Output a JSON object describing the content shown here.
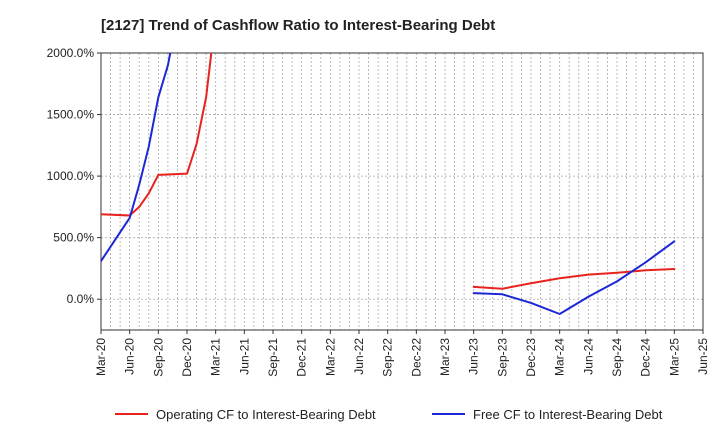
{
  "chart_data": {
    "type": "line",
    "title": "[2127]  Trend of Cashflow Ratio to Interest-Bearing Debt",
    "xlabel": "",
    "ylabel": "",
    "ylim": [
      -250,
      2000
    ],
    "yticks": [
      0,
      500,
      1000,
      1500,
      2000
    ],
    "ytick_labels": [
      "0.0%",
      "500.0%",
      "1000.0%",
      "1500.0%",
      "2000.0%"
    ],
    "x": [
      "Mar-20",
      "Apr-20",
      "May-20",
      "Jun-20",
      "Jul-20",
      "Aug-20",
      "Sep-20",
      "Oct-20",
      "Nov-20",
      "Dec-20",
      "Jan-21",
      "Feb-21",
      "Mar-21",
      "Apr-21",
      "May-21",
      "Jun-21",
      "Jul-21",
      "Aug-21",
      "Sep-21",
      "Oct-21",
      "Nov-21",
      "Dec-21",
      "Jan-22",
      "Feb-22",
      "Mar-22",
      "Apr-22",
      "May-22",
      "Jun-22",
      "Jul-22",
      "Aug-22",
      "Sep-22",
      "Oct-22",
      "Nov-22",
      "Dec-22",
      "Jan-23",
      "Feb-23",
      "Mar-23",
      "Apr-23",
      "May-23",
      "Jun-23",
      "Jul-23",
      "Aug-23",
      "Sep-23",
      "Oct-23",
      "Nov-23",
      "Dec-23",
      "Jan-24",
      "Feb-24",
      "Mar-24",
      "Apr-24",
      "May-24",
      "Jun-24",
      "Jul-24",
      "Aug-24",
      "Sep-24",
      "Oct-24",
      "Nov-24",
      "Dec-24",
      "Jan-25",
      "Feb-25",
      "Mar-25",
      "Apr-25",
      "May-25",
      "Jun-25"
    ],
    "xtick_labels": [
      "Mar-20",
      "Jun-20",
      "Sep-20",
      "Dec-20",
      "Mar-21",
      "Jun-21",
      "Sep-21",
      "Dec-21",
      "Mar-22",
      "Jun-22",
      "Sep-22",
      "Dec-22",
      "Mar-23",
      "Jun-23",
      "Sep-23",
      "Dec-23",
      "Mar-24",
      "Jun-24",
      "Sep-24",
      "Dec-24",
      "Mar-25",
      "Jun-25"
    ],
    "grid": true,
    "legend_position": "bottom",
    "series": [
      {
        "name": "Operating CF to Interest-Bearing Debt",
        "color": "#e8231e",
        "values": [
          690,
          null,
          null,
          680,
          750,
          860,
          1010,
          null,
          null,
          1020,
          1260,
          1640,
          2300,
          null,
          null,
          null,
          null,
          null,
          null,
          null,
          null,
          null,
          null,
          null,
          null,
          null,
          null,
          null,
          null,
          null,
          null,
          null,
          null,
          null,
          null,
          null,
          null,
          null,
          null,
          100,
          null,
          null,
          85,
          null,
          null,
          130,
          null,
          null,
          170,
          null,
          null,
          200,
          null,
          null,
          215,
          null,
          null,
          235,
          null,
          null,
          245,
          null,
          null,
          null
        ]
      },
      {
        "name": "Free CF to Interest-Bearing Debt",
        "color": "#1c27d6",
        "values": [
          310,
          null,
          null,
          660,
          930,
          1240,
          1640,
          1900,
          2300,
          null,
          null,
          null,
          null,
          null,
          null,
          null,
          null,
          null,
          null,
          null,
          null,
          null,
          null,
          null,
          null,
          null,
          null,
          null,
          null,
          null,
          null,
          null,
          null,
          null,
          null,
          null,
          null,
          null,
          null,
          50,
          null,
          null,
          40,
          null,
          null,
          -30,
          null,
          null,
          -120,
          null,
          null,
          20,
          null,
          null,
          145,
          null,
          null,
          300,
          null,
          null,
          470,
          null,
          null,
          null
        ]
      }
    ]
  }
}
